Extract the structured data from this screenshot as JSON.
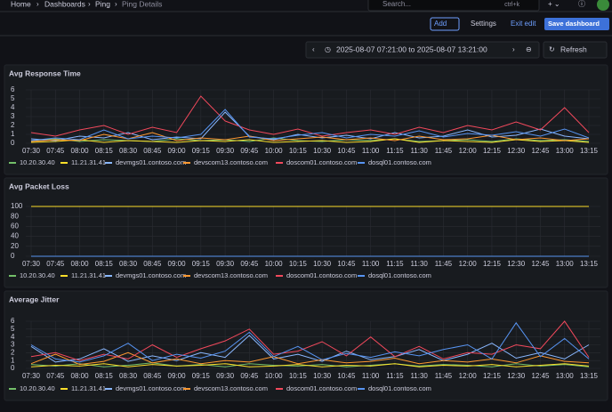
{
  "header": {
    "breadcrumb": [
      "Home",
      "Dashboards",
      "Ping",
      "Ping Details"
    ],
    "search": "Search...",
    "shortcut": "ctrl+k"
  },
  "toolbar": {
    "add": "Add",
    "settings": "Settings",
    "exit_edit": "Exit edit",
    "save": "Save dashboard",
    "time_range": "2025-08-07 07:21:00 to 2025-08-07 13:21:00",
    "refresh": "Refresh"
  },
  "panels": [
    {
      "type": "line",
      "title": "Avg Response Time",
      "ylim": [
        0,
        6
      ],
      "yticks": [
        0,
        1,
        2,
        3,
        4,
        5,
        6
      ],
      "categories": [
        "07:30",
        "07:45",
        "08:00",
        "08:15",
        "08:30",
        "08:45",
        "09:00",
        "09:15",
        "09:30",
        "09:45",
        "10:00",
        "10:15",
        "10:30",
        "10:45",
        "11:00",
        "11:15",
        "11:30",
        "11:45",
        "12:00",
        "12:15",
        "12:30",
        "12:45",
        "13:00",
        "13:15"
      ],
      "series": [
        {
          "name": "10.20.30.40",
          "color": "#73bf69",
          "values": [
            0.3,
            0.5,
            0.2,
            0.4,
            0.3,
            0.2,
            0.5,
            0.3,
            0.4,
            0.2,
            0.6,
            0.3,
            0.2,
            0.4,
            0.3,
            0.5,
            0.2,
            0.3,
            0.4,
            0.2,
            0.5,
            0.3,
            0.4,
            0.2
          ]
        },
        {
          "name": "11.21.31.41",
          "color": "#fade2a",
          "values": [
            0.1,
            0.2,
            0.4,
            0.1,
            0.3,
            0.2,
            0.1,
            0.3,
            0.2,
            0.4,
            0.1,
            0.2,
            0.3,
            0.1,
            0.2,
            0.5,
            0.1,
            0.3,
            0.2,
            0.1,
            0.4,
            0.2,
            0.3,
            0.1
          ]
        },
        {
          "name": "devmgs01.contoso.com",
          "color": "#8ab8ff",
          "values": [
            0.5,
            0.3,
            0.8,
            0.6,
            1.2,
            0.4,
            0.7,
            0.5,
            3.5,
            0.8,
            0.4,
            1.0,
            0.6,
            0.9,
            0.5,
            1.2,
            0.6,
            0.8,
            1.5,
            0.7,
            0.9,
            1.6,
            0.8,
            0.5
          ]
        },
        {
          "name": "devscom13.contoso.com",
          "color": "#ff9830",
          "values": [
            0.2,
            0.4,
            0.3,
            1.0,
            0.5,
            1.2,
            0.3,
            0.6,
            0.4,
            0.8,
            0.3,
            0.5,
            0.7,
            0.4,
            0.6,
            0.3,
            0.8,
            0.4,
            0.5,
            0.9,
            0.4,
            0.6,
            0.3,
            0.5
          ]
        },
        {
          "name": "doscom01.contoso.com",
          "color": "#f2495c",
          "values": [
            1.2,
            0.8,
            1.5,
            2.0,
            1.0,
            1.8,
            1.2,
            5.3,
            2.5,
            1.5,
            1.0,
            1.6,
            0.8,
            1.2,
            1.5,
            1.0,
            1.8,
            1.2,
            2.0,
            1.5,
            2.4,
            1.5,
            4.0,
            1.2
          ]
        },
        {
          "name": "dosql01.contoso.com",
          "color": "#5794f2",
          "values": [
            0.3,
            0.6,
            0.4,
            1.5,
            0.5,
            0.8,
            0.6,
            1.0,
            3.8,
            0.7,
            0.5,
            0.9,
            1.2,
            0.6,
            1.0,
            0.8,
            1.4,
            0.7,
            1.1,
            0.9,
            1.3,
            0.8,
            1.6,
            0.6
          ]
        }
      ]
    },
    {
      "type": "line",
      "title": "Avg Packet Loss",
      "ylim": [
        0,
        100
      ],
      "yticks": [
        0,
        20,
        40,
        60,
        80,
        100
      ],
      "categories": [
        "07:30",
        "07:45",
        "08:00",
        "08:15",
        "08:30",
        "08:45",
        "09:00",
        "09:15",
        "09:30",
        "09:45",
        "10:00",
        "10:15",
        "10:30",
        "10:45",
        "11:00",
        "11:15",
        "11:30",
        "11:45",
        "12:00",
        "12:15",
        "12:30",
        "12:45",
        "13:00",
        "13:15"
      ],
      "series": [
        {
          "name": "10.20.30.40",
          "color": "#73bf69",
          "values": [
            0,
            0,
            0,
            0,
            0,
            0,
            0,
            0,
            0,
            0,
            0,
            0,
            0,
            0,
            0,
            0,
            0,
            0,
            0,
            0,
            0,
            0,
            0,
            0
          ]
        },
        {
          "name": "11.21.31.41",
          "color": "#fade2a",
          "values": [
            100,
            100,
            100,
            100,
            100,
            100,
            100,
            100,
            100,
            100,
            100,
            100,
            100,
            100,
            100,
            100,
            100,
            100,
            100,
            100,
            100,
            100,
            100,
            100
          ]
        },
        {
          "name": "devmgs01.contoso.com",
          "color": "#8ab8ff",
          "values": [
            0,
            0,
            0,
            0,
            0,
            0,
            0,
            0,
            0,
            0,
            0,
            0,
            0,
            0,
            0,
            0,
            0,
            0,
            0,
            0,
            0,
            0,
            0,
            0
          ]
        },
        {
          "name": "devscom13.contoso.com",
          "color": "#ff9830",
          "values": [
            0,
            0,
            0,
            0,
            0,
            0,
            0,
            0,
            0,
            0,
            0,
            0,
            0,
            0,
            0,
            0,
            0,
            0,
            0,
            0,
            0,
            0,
            0,
            0
          ]
        },
        {
          "name": "doscom01.contoso.com",
          "color": "#f2495c",
          "values": [
            0,
            0,
            0,
            0,
            0,
            0,
            0,
            0,
            0,
            0,
            0,
            0,
            0,
            0,
            0,
            0,
            0,
            0,
            0,
            0,
            0,
            0,
            0,
            0
          ]
        },
        {
          "name": "dosql01.contoso.com",
          "color": "#5794f2",
          "values": [
            0,
            0,
            0,
            0,
            0,
            0,
            0,
            0,
            0,
            0,
            0,
            0,
            0,
            0,
            0,
            0,
            0,
            0,
            0,
            0,
            0,
            0,
            0,
            0
          ]
        }
      ]
    },
    {
      "type": "line",
      "title": "Average Jitter",
      "ylim": [
        0,
        6
      ],
      "yticks": [
        0,
        1,
        2,
        3,
        4,
        5,
        6
      ],
      "categories": [
        "07:30",
        "07:45",
        "08:00",
        "08:15",
        "08:30",
        "08:45",
        "09:00",
        "09:15",
        "09:30",
        "09:45",
        "10:00",
        "10:15",
        "10:30",
        "10:45",
        "11:00",
        "11:15",
        "11:30",
        "11:45",
        "12:00",
        "12:15",
        "12:30",
        "12:45",
        "13:00",
        "13:15"
      ],
      "series": [
        {
          "name": "10.20.30.40",
          "color": "#73bf69",
          "values": [
            0.5,
            0.3,
            0.6,
            0.2,
            0.4,
            0.7,
            0.3,
            0.5,
            0.2,
            0.6,
            0.4,
            0.3,
            0.5,
            0.2,
            0.4,
            0.6,
            0.3,
            0.5,
            0.4,
            0.2,
            0.6,
            0.3,
            0.5,
            0.2
          ]
        },
        {
          "name": "11.21.31.41",
          "color": "#fade2a",
          "values": [
            0.2,
            0.4,
            0.3,
            0.6,
            0.2,
            0.5,
            0.3,
            0.4,
            0.6,
            0.2,
            0.3,
            0.5,
            0.2,
            0.4,
            0.3,
            0.6,
            0.2,
            0.4,
            0.3,
            0.5,
            0.2,
            0.4,
            0.6,
            0.3
          ]
        },
        {
          "name": "devmgs01.contoso.com",
          "color": "#8ab8ff",
          "values": [
            2.8,
            0.8,
            1.2,
            2.5,
            0.9,
            1.6,
            1.0,
            2.0,
            1.4,
            4.2,
            1.2,
            1.8,
            0.9,
            2.2,
            1.1,
            1.5,
            2.4,
            1.0,
            1.8,
            3.2,
            1.3,
            2.0,
            1.2,
            3.0
          ]
        },
        {
          "name": "devscom13.contoso.com",
          "color": "#ff9830",
          "values": [
            0.6,
            1.8,
            0.5,
            0.9,
            2.0,
            0.7,
            1.2,
            0.6,
            1.0,
            0.8,
            1.5,
            0.6,
            1.1,
            0.7,
            0.9,
            1.3,
            0.6,
            1.0,
            0.8,
            1.2,
            0.7,
            1.6,
            0.9,
            0.7
          ]
        },
        {
          "name": "doscom01.contoso.com",
          "color": "#f2495c",
          "values": [
            1.5,
            2.0,
            1.0,
            1.8,
            1.2,
            3.0,
            1.4,
            2.5,
            3.5,
            5.0,
            1.8,
            2.2,
            3.4,
            1.6,
            4.0,
            1.5,
            2.8,
            1.2,
            2.0,
            1.8,
            3.0,
            2.5,
            6.0,
            1.4
          ]
        },
        {
          "name": "dosql01.contoso.com",
          "color": "#5794f2",
          "values": [
            3.0,
            1.2,
            0.8,
            1.6,
            3.2,
            1.0,
            1.8,
            1.3,
            2.2,
            4.6,
            1.5,
            2.8,
            1.1,
            1.9,
            1.4,
            2.1,
            1.6,
            2.4,
            3.0,
            1.2,
            5.8,
            1.5,
            3.8,
            1.2
          ]
        }
      ]
    }
  ]
}
